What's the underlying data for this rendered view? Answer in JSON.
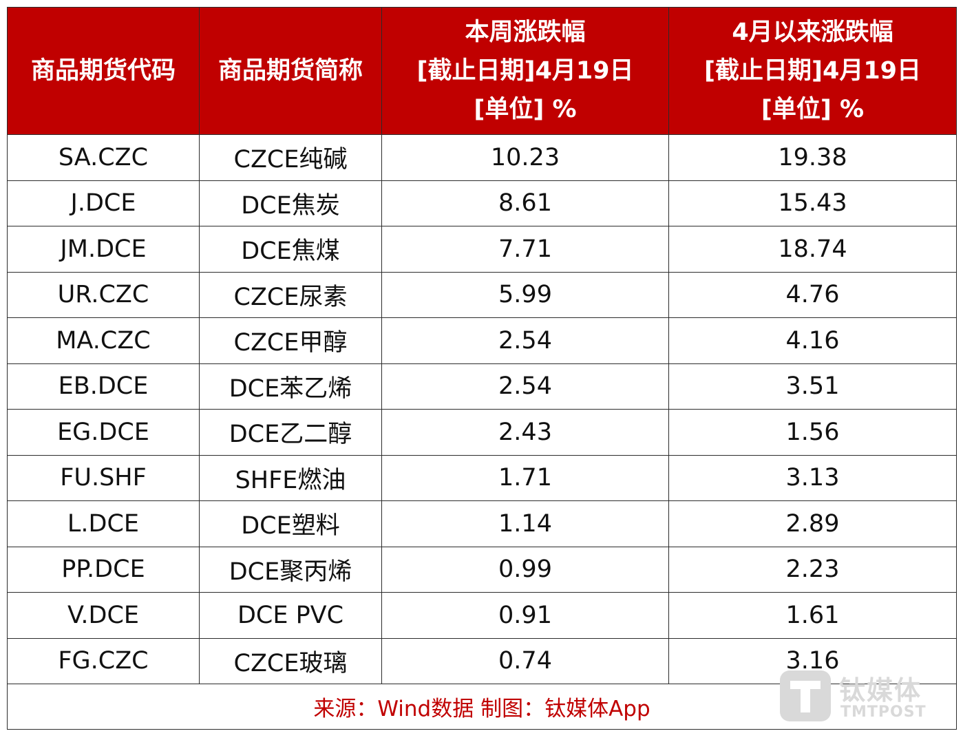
{
  "header": {
    "col1": "商品期货代码",
    "col2": "商品期货简称",
    "col3_lines": [
      "本周涨跌幅",
      "[截止日期]4月19日",
      "[单位] %"
    ],
    "col4_lines": [
      "4月以来涨跌幅",
      "[截止日期]4月19日",
      "[单位] %"
    ]
  },
  "rows": [
    {
      "code": "SA.CZC",
      "name": "CZCE纯碱",
      "week": "10.23",
      "since_april": "19.38"
    },
    {
      "code": "J.DCE",
      "name": "DCE焦炭",
      "week": "8.61",
      "since_april": "15.43"
    },
    {
      "code": "JM.DCE",
      "name": "DCE焦煤",
      "week": "7.71",
      "since_april": "18.74"
    },
    {
      "code": "UR.CZC",
      "name": "CZCE尿素",
      "week": "5.99",
      "since_april": "4.76"
    },
    {
      "code": "MA.CZC",
      "name": "CZCE甲醇",
      "week": "2.54",
      "since_april": "4.16"
    },
    {
      "code": "EB.DCE",
      "name": "DCE苯乙烯",
      "week": "2.54",
      "since_april": "3.51"
    },
    {
      "code": "EG.DCE",
      "name": "DCE乙二醇",
      "week": "2.43",
      "since_april": "1.56"
    },
    {
      "code": "FU.SHF",
      "name": "SHFE燃油",
      "week": "1.71",
      "since_april": "3.13"
    },
    {
      "code": "L.DCE",
      "name": "DCE塑料",
      "week": "1.14",
      "since_april": "2.89"
    },
    {
      "code": "PP.DCE",
      "name": "DCE聚丙烯",
      "week": "0.99",
      "since_april": "2.23"
    },
    {
      "code": "V.DCE",
      "name": "DCE PVC",
      "week": "0.91",
      "since_april": "1.61"
    },
    {
      "code": "FG.CZC",
      "name": "CZCE玻璃",
      "week": "0.74",
      "since_april": "3.16"
    }
  ],
  "footer": {
    "source": "来源：Wind数据 制图：钛媒体App"
  },
  "watermark": {
    "name": "钛媒体",
    "sub": "TMTPOST",
    "icon": "tmtpost-logo-icon"
  },
  "colors": {
    "header_bg": "#c00000",
    "header_text": "#ffffff",
    "footer_text": "#c00000",
    "watermark": "#d9d9d9"
  }
}
